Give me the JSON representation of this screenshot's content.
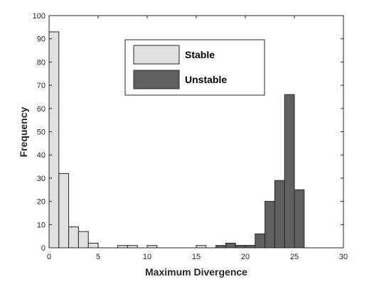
{
  "chart_data": {
    "type": "bar",
    "xlabel": "Maximum Divergence",
    "ylabel": "Frequency",
    "xlim": [
      0,
      30
    ],
    "ylim": [
      0,
      100
    ],
    "xticks": [
      0,
      5,
      10,
      15,
      20,
      25,
      30
    ],
    "yticks": [
      0,
      10,
      20,
      30,
      40,
      50,
      60,
      70,
      80,
      90,
      100
    ],
    "grid": false,
    "legend_position": "top-center",
    "series": [
      {
        "name": "Stable",
        "color": "#e0e0e0",
        "bins": [
          {
            "x0": 0,
            "x1": 1,
            "value": 93
          },
          {
            "x0": 1,
            "x1": 2,
            "value": 32
          },
          {
            "x0": 2,
            "x1": 3,
            "value": 9
          },
          {
            "x0": 3,
            "x1": 4,
            "value": 7
          },
          {
            "x0": 4,
            "x1": 5,
            "value": 2
          },
          {
            "x0": 7,
            "x1": 8,
            "value": 1
          },
          {
            "x0": 8,
            "x1": 9,
            "value": 1
          },
          {
            "x0": 10,
            "x1": 11,
            "value": 1
          },
          {
            "x0": 15,
            "x1": 16,
            "value": 1
          },
          {
            "x0": 19,
            "x1": 20,
            "value": 1
          },
          {
            "x0": 20,
            "x1": 21,
            "value": 1
          }
        ]
      },
      {
        "name": "Unstable",
        "color": "#606060",
        "bins": [
          {
            "x0": 17,
            "x1": 18,
            "value": 1
          },
          {
            "x0": 18,
            "x1": 19,
            "value": 2
          },
          {
            "x0": 19,
            "x1": 20,
            "value": 1
          },
          {
            "x0": 20,
            "x1": 21,
            "value": 1
          },
          {
            "x0": 21,
            "x1": 22,
            "value": 6
          },
          {
            "x0": 22,
            "x1": 23,
            "value": 20
          },
          {
            "x0": 23,
            "x1": 24,
            "value": 29
          },
          {
            "x0": 24,
            "x1": 25,
            "value": 66
          },
          {
            "x0": 25,
            "x1": 26,
            "value": 25
          }
        ]
      }
    ]
  }
}
